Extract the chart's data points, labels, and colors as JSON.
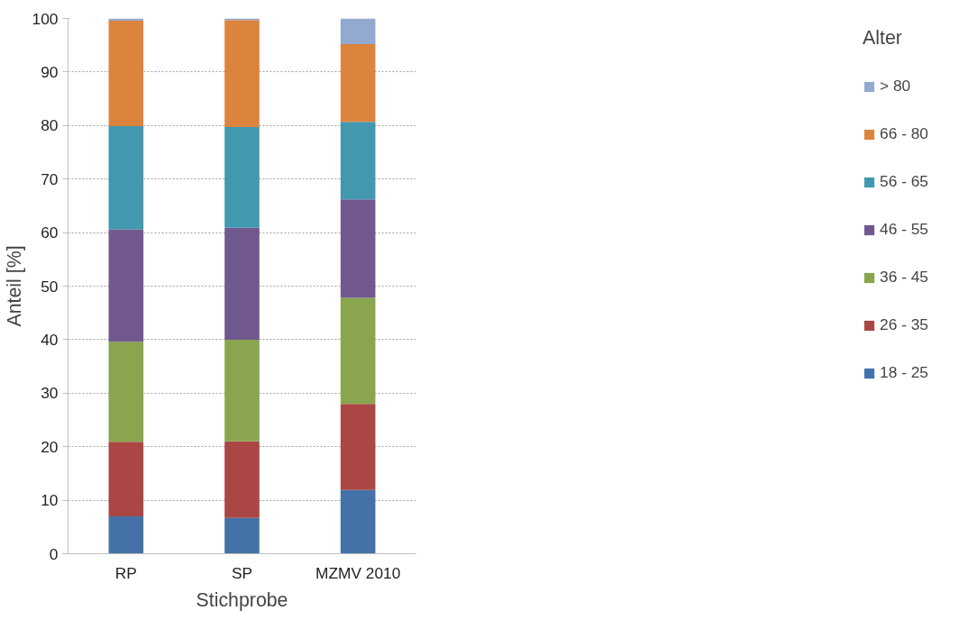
{
  "chart_data": {
    "type": "bar",
    "stacked": true,
    "xlabel": "Stichprobe",
    "ylabel": "Anteil [%]",
    "legend_title": "Alter",
    "legend": "right",
    "grid": "y",
    "categories": [
      "RP",
      "SP",
      "MZMV 2010"
    ],
    "ylim": [
      0,
      100
    ],
    "yticks": [
      0,
      10,
      20,
      30,
      40,
      50,
      60,
      70,
      80,
      90,
      100
    ],
    "series": [
      {
        "name": "18 - 25",
        "color": "#4472a8",
        "values": [
          7.0,
          6.7,
          11.9
        ]
      },
      {
        "name": "26 - 35",
        "color": "#aa4644",
        "values": [
          13.9,
          14.3,
          16.1
        ]
      },
      {
        "name": "36 - 45",
        "color": "#89a54e",
        "values": [
          18.7,
          19.0,
          19.8
        ]
      },
      {
        "name": "46 - 55",
        "color": "#71588f",
        "values": [
          21.0,
          20.9,
          18.4
        ]
      },
      {
        "name": "56 - 65",
        "color": "#4298af",
        "values": [
          19.3,
          18.8,
          14.5
        ]
      },
      {
        "name": "66 - 80",
        "color": "#db843d",
        "values": [
          19.7,
          20.0,
          14.5
        ]
      },
      {
        "name": "> 80",
        "color": "#93a9cf",
        "values": [
          0.4,
          0.3,
          4.8
        ]
      }
    ]
  }
}
